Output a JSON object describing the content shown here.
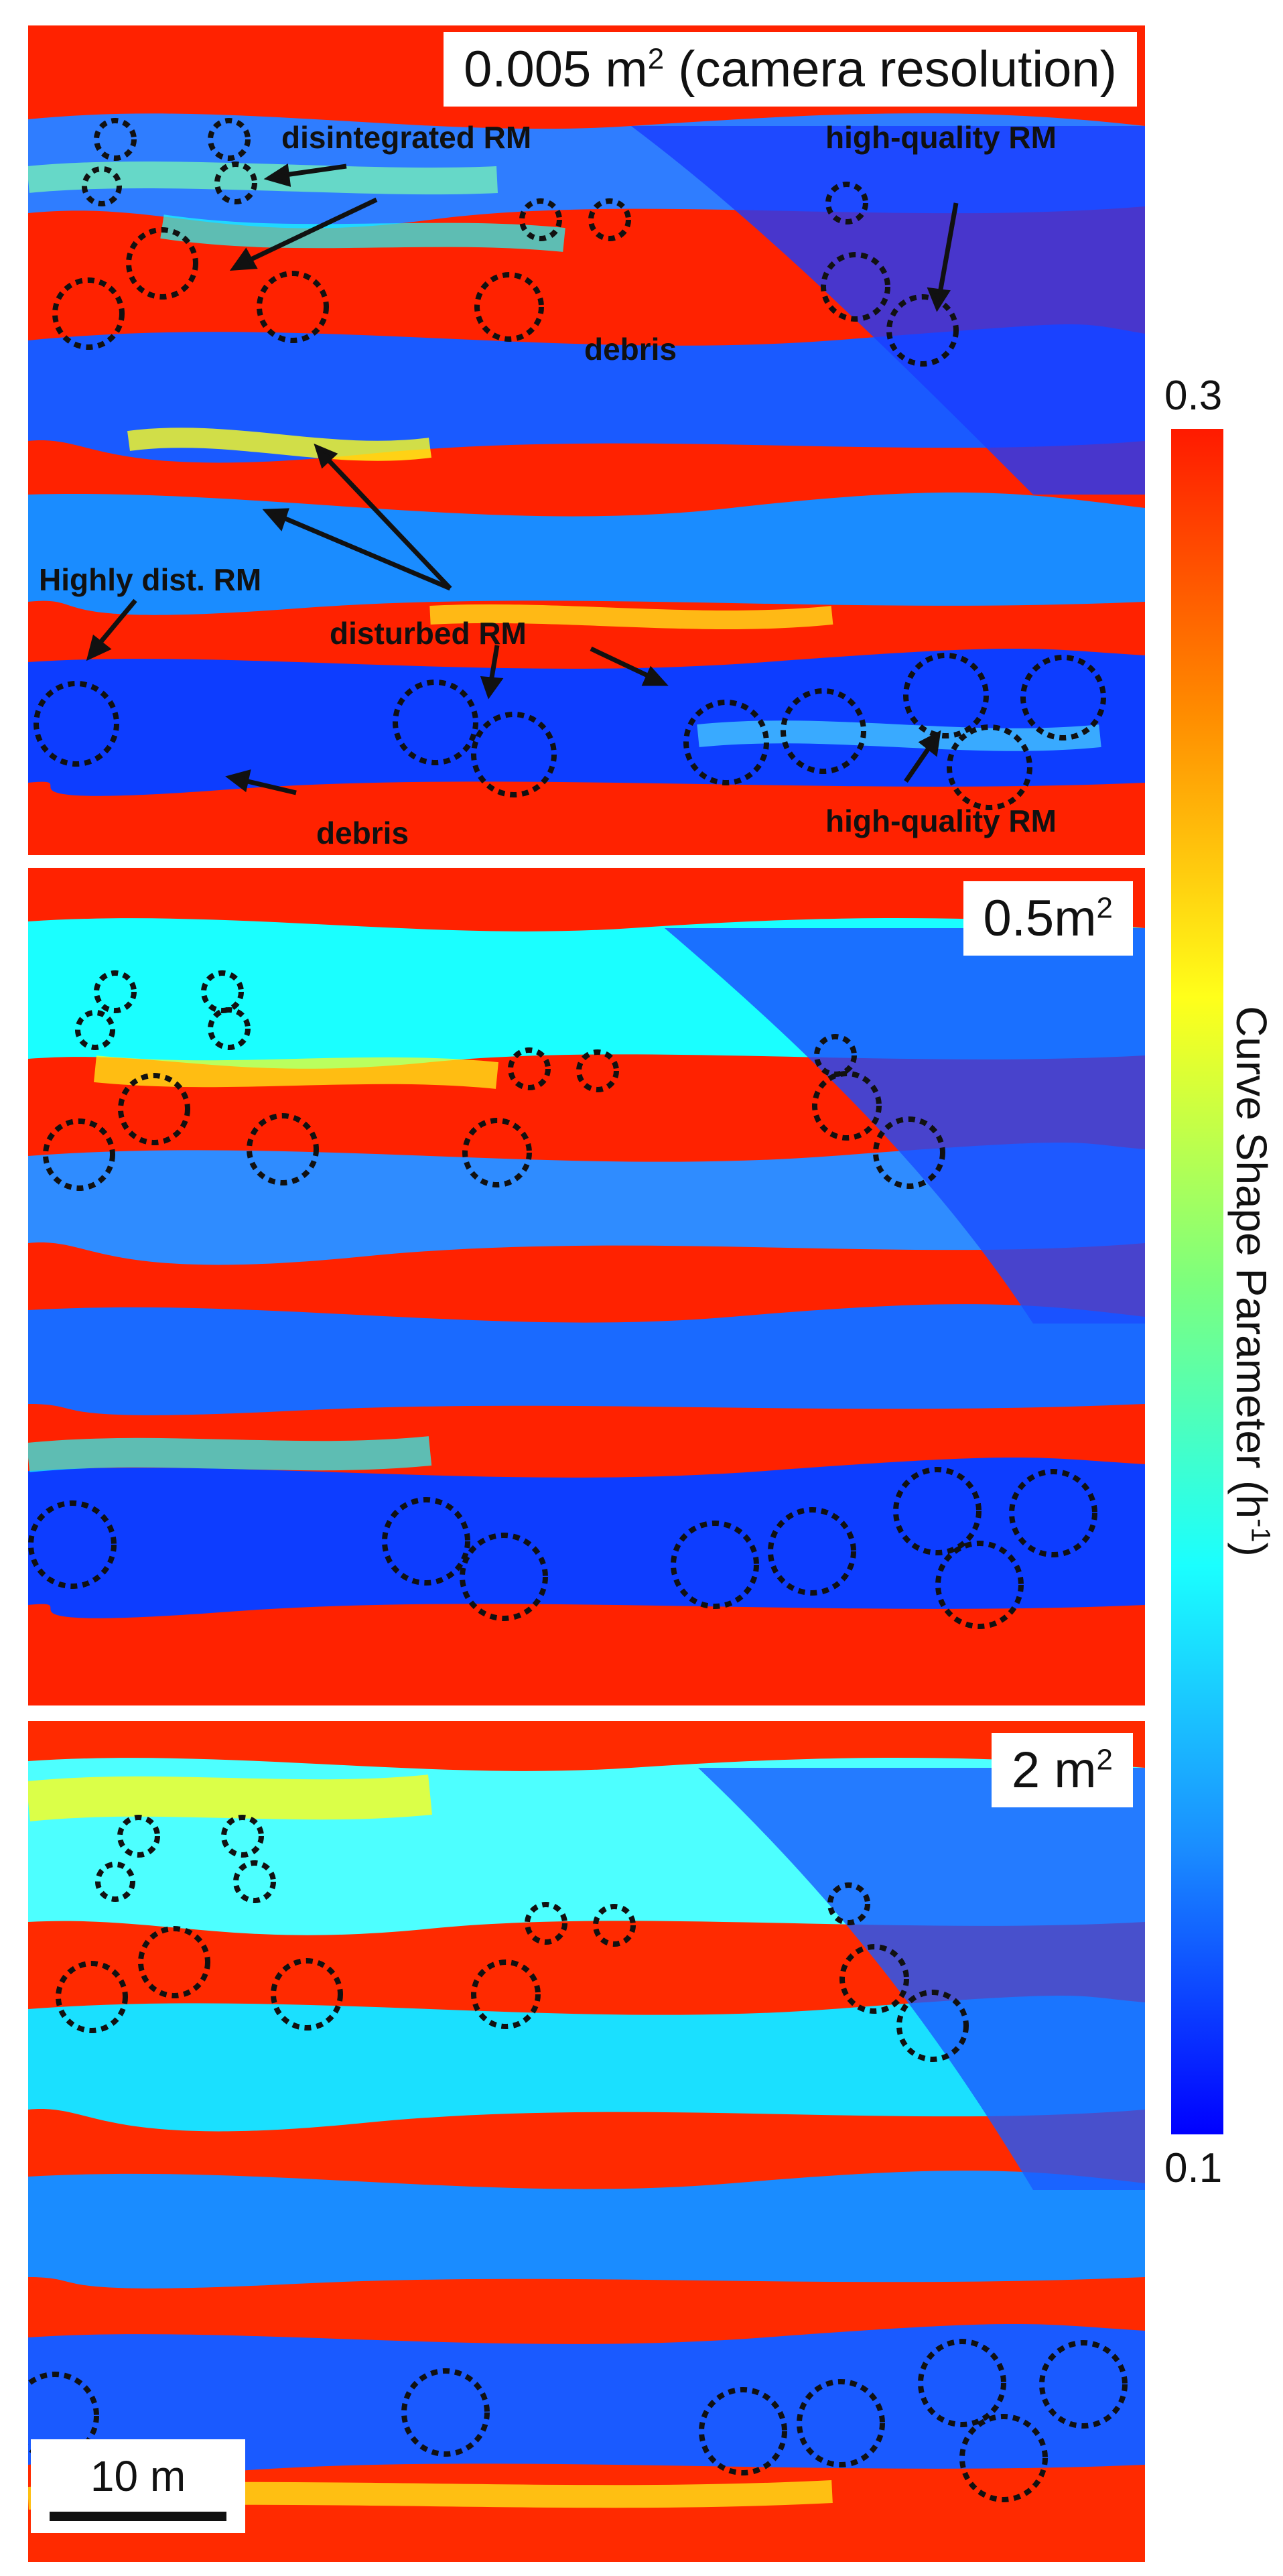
{
  "panels": [
    {
      "label_main": "0.005 m",
      "label_sup": "2",
      "label_suffix": " (camera resolution)"
    },
    {
      "label_main": "0.5m",
      "label_sup": "2",
      "label_suffix": ""
    },
    {
      "label_main": "2 m",
      "label_sup": "2",
      "label_suffix": ""
    }
  ],
  "annotations": {
    "disintegrated": "disintegrated RM",
    "high_quality_top": "high-quality RM",
    "debris_1": "debris",
    "highly_dist": "Highly dist. RM",
    "disturbed": "disturbed RM",
    "debris_2": "debris",
    "high_quality_bottom": "high-quality RM"
  },
  "colorbar": {
    "max": "0.3",
    "min": "0.1",
    "label": "Curve Shape Parameter (h",
    "label_sup": "-1",
    "label_close": ")",
    "colors": [
      "#ff1a00",
      "#ff8c00",
      "#ffff1a",
      "#7dff7d",
      "#1affff",
      "#1a8cff",
      "#0000ff"
    ]
  },
  "scale_bar": {
    "label": "10 m"
  }
}
